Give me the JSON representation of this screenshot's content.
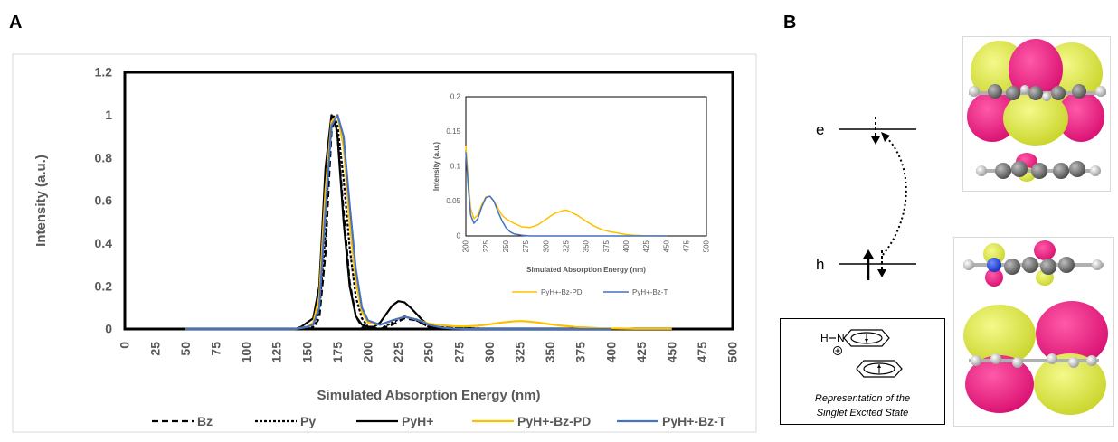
{
  "panels": {
    "a_label": "A",
    "b_label": "B"
  },
  "chart_data": [
    {
      "type": "line",
      "title": "",
      "xlabel": "Simulated Absorption Energy (nm)",
      "ylabel": "Intensity (a.u.)",
      "xlim": [
        0,
        500
      ],
      "ylim": [
        0,
        1.2
      ],
      "x_ticks": [
        "0",
        "25",
        "50",
        "75",
        "100",
        "125",
        "150",
        "175",
        "200",
        "225",
        "250",
        "275",
        "300",
        "325",
        "350",
        "375",
        "400",
        "425",
        "450",
        "475",
        "500"
      ],
      "y_ticks": [
        "0",
        "0.2",
        "0.4",
        "0.6",
        "0.8",
        "1",
        "1.2"
      ],
      "grid": false,
      "legend_position": "bottom",
      "series": [
        {
          "name": "Bz",
          "color": "#000000",
          "dash": "dashed",
          "x": [
            150,
            155,
            160,
            165,
            168,
            170,
            172,
            175,
            180,
            185,
            190,
            195,
            200,
            210,
            220,
            230,
            240,
            250,
            300
          ],
          "y": [
            0,
            0.005,
            0.05,
            0.35,
            0.7,
            0.92,
            0.98,
            0.9,
            0.55,
            0.22,
            0.06,
            0.01,
            0,
            0,
            0.02,
            0.05,
            0.04,
            0.01,
            0
          ]
        },
        {
          "name": "Py",
          "color": "#000000",
          "dash": "dotted",
          "x": [
            150,
            155,
            160,
            165,
            168,
            170,
            172,
            175,
            180,
            185,
            190,
            195,
            200,
            210,
            220,
            230,
            240,
            250,
            300
          ],
          "y": [
            0,
            0.01,
            0.08,
            0.45,
            0.8,
            0.95,
            1.0,
            0.95,
            0.7,
            0.38,
            0.15,
            0.05,
            0.01,
            0,
            0.03,
            0.06,
            0.04,
            0.01,
            0
          ]
        },
        {
          "name": "PyH+",
          "color": "#000000",
          "dash": "solid",
          "x": [
            50,
            140,
            145,
            150,
            155,
            160,
            165,
            170,
            173,
            175,
            180,
            185,
            190,
            195,
            200,
            205,
            210,
            215,
            220,
            225,
            230,
            235,
            240,
            245,
            250,
            260,
            300
          ],
          "y": [
            0,
            0,
            0.01,
            0.03,
            0.05,
            0.2,
            0.75,
            1.0,
            0.97,
            0.9,
            0.5,
            0.2,
            0.06,
            0.02,
            0.01,
            0.01,
            0.03,
            0.07,
            0.11,
            0.13,
            0.125,
            0.1,
            0.07,
            0.04,
            0.02,
            0,
            0
          ]
        },
        {
          "name": "PyH+-Bz-PD",
          "color": "#FFC000",
          "dash": "solid",
          "x": [
            50,
            140,
            150,
            155,
            160,
            165,
            170,
            175,
            180,
            185,
            190,
            195,
            200,
            210,
            220,
            230,
            240,
            250,
            260,
            270,
            280,
            290,
            300,
            310,
            320,
            325,
            330,
            340,
            350,
            360,
            370,
            380,
            390,
            400,
            410,
            420,
            430,
            450
          ],
          "y": [
            0,
            0,
            0.01,
            0.03,
            0.15,
            0.65,
            0.97,
            1.0,
            0.85,
            0.5,
            0.22,
            0.08,
            0.03,
            0.02,
            0.04,
            0.058,
            0.045,
            0.025,
            0.018,
            0.013,
            0.012,
            0.015,
            0.022,
            0.03,
            0.036,
            0.037,
            0.036,
            0.03,
            0.022,
            0.015,
            0.01,
            0.007,
            0.004,
            0.003,
            0.002,
            0.001,
            0.001,
            0.001
          ]
        },
        {
          "name": "PyH+-Bz-T",
          "color": "#4472C4",
          "dash": "solid",
          "x": [
            50,
            140,
            150,
            155,
            160,
            165,
            170,
            175,
            180,
            185,
            190,
            195,
            200,
            210,
            220,
            230,
            240,
            250,
            260,
            270,
            280,
            300,
            400
          ],
          "y": [
            0,
            0,
            0.01,
            0.02,
            0.1,
            0.55,
            0.95,
            1.0,
            0.9,
            0.58,
            0.28,
            0.1,
            0.04,
            0.02,
            0.04,
            0.057,
            0.045,
            0.02,
            0.007,
            0.002,
            0,
            0,
            0
          ]
        }
      ]
    },
    {
      "type": "line",
      "title": "",
      "xlabel": "Simulated Absorption Energy (nm)",
      "ylabel": "Intensity (a.u.)",
      "xlim": [
        200,
        500
      ],
      "ylim": [
        0,
        0.2
      ],
      "x_ticks": [
        "200",
        "225",
        "250",
        "275",
        "300",
        "325",
        "350",
        "375",
        "400",
        "425",
        "450",
        "475",
        "500"
      ],
      "y_ticks": [
        "0",
        "0.05",
        "0.1",
        "0.15",
        "0.2"
      ],
      "grid": false,
      "legend_position": "bottom",
      "series": [
        {
          "name": "PyH+-Bz-PD",
          "color": "#FFC000",
          "dash": "solid",
          "x": [
            200,
            203,
            206,
            210,
            215,
            220,
            225,
            230,
            235,
            240,
            245,
            250,
            260,
            270,
            280,
            290,
            300,
            310,
            320,
            325,
            330,
            340,
            350,
            360,
            370,
            380,
            390,
            400,
            410,
            420,
            430,
            450
          ],
          "y": [
            0.13,
            0.08,
            0.04,
            0.025,
            0.03,
            0.045,
            0.056,
            0.057,
            0.05,
            0.04,
            0.03,
            0.025,
            0.018,
            0.013,
            0.012,
            0.016,
            0.024,
            0.032,
            0.036,
            0.037,
            0.035,
            0.029,
            0.021,
            0.014,
            0.009,
            0.006,
            0.004,
            0.002,
            0.001,
            0.0005,
            0.0002,
            0
          ]
        },
        {
          "name": "PyH+-Bz-T",
          "color": "#4472C4",
          "dash": "solid",
          "x": [
            200,
            203,
            206,
            210,
            215,
            220,
            225,
            230,
            235,
            240,
            245,
            250,
            255,
            260,
            270,
            280,
            290,
            300,
            350,
            450
          ],
          "y": [
            0.12,
            0.07,
            0.03,
            0.018,
            0.025,
            0.042,
            0.055,
            0.057,
            0.05,
            0.035,
            0.022,
            0.012,
            0.006,
            0.003,
            0.001,
            0,
            0,
            0,
            0,
            0
          ]
        }
      ]
    }
  ],
  "diagram": {
    "level_e": "e",
    "level_h": "h",
    "molecule_h": "H",
    "molecule_n": "N",
    "caption_line1": "Representation of the",
    "caption_line2": "Singlet Excited State"
  }
}
